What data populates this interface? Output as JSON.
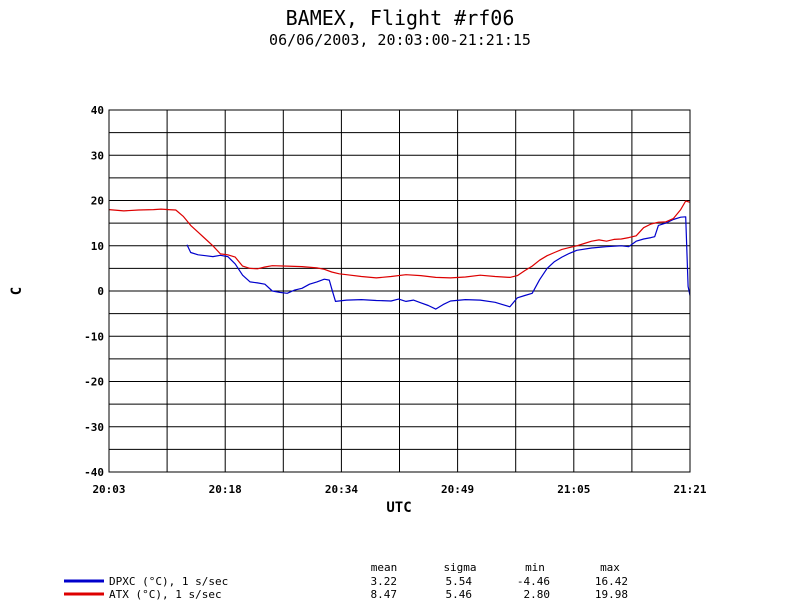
{
  "chart_data": {
    "type": "line",
    "title": "BAMEX, Flight #rf06",
    "subtitle": "06/06/2003, 20:03:00-21:21:15",
    "xlabel": "UTC",
    "ylabel": "C",
    "ylim": [
      -40,
      40
    ],
    "yticks": [
      "40",
      "30",
      "20",
      "10",
      "0",
      "-10",
      "-20",
      "-30",
      "-40"
    ],
    "xticks": [
      "20:03",
      "20:18",
      "20:34",
      "20:49",
      "21:05",
      "21:21"
    ],
    "grid": true,
    "series": [
      {
        "name": "DPXC (°C), 1 s/sec",
        "color": "#0000cc",
        "points": [
          [
            "20:13:30",
            10.2
          ],
          [
            "20:14:00",
            8.5
          ],
          [
            "20:15:00",
            8.0
          ],
          [
            "20:16:00",
            7.8
          ],
          [
            "20:17:00",
            7.6
          ],
          [
            "20:18:00",
            7.9
          ],
          [
            "20:19:00",
            7.6
          ],
          [
            "20:20:00",
            6.0
          ],
          [
            "20:21:00",
            3.5
          ],
          [
            "20:22:00",
            2.0
          ],
          [
            "20:23:00",
            1.8
          ],
          [
            "20:24:00",
            1.5
          ],
          [
            "20:25:00",
            0.0
          ],
          [
            "20:26:00",
            -0.3
          ],
          [
            "20:27:00",
            -0.5
          ],
          [
            "20:28:00",
            0.2
          ],
          [
            "20:29:00",
            0.6
          ],
          [
            "20:30:00",
            1.5
          ],
          [
            "20:31:00",
            2.0
          ],
          [
            "20:32:00",
            2.6
          ],
          [
            "20:32:40",
            2.4
          ],
          [
            "20:33:00",
            0.5
          ],
          [
            "20:33:30",
            -2.3
          ],
          [
            "20:35:00",
            -2.0
          ],
          [
            "20:37:00",
            -1.9
          ],
          [
            "20:39:00",
            -2.1
          ],
          [
            "20:41:00",
            -2.2
          ],
          [
            "20:42:00",
            -1.8
          ],
          [
            "20:43:00",
            -2.3
          ],
          [
            "20:44:00",
            -2.0
          ],
          [
            "20:45:00",
            -2.6
          ],
          [
            "20:46:00",
            -3.2
          ],
          [
            "20:47:00",
            -4.0
          ],
          [
            "20:48:00",
            -3.0
          ],
          [
            "20:49:00",
            -2.2
          ],
          [
            "20:51:00",
            -1.9
          ],
          [
            "20:53:00",
            -2.0
          ],
          [
            "20:55:00",
            -2.5
          ],
          [
            "20:56:00",
            -3.0
          ],
          [
            "20:57:00",
            -3.5
          ],
          [
            "20:58:00",
            -1.5
          ],
          [
            "20:59:00",
            -1.0
          ],
          [
            "21:00:00",
            -0.5
          ],
          [
            "21:01:00",
            2.5
          ],
          [
            "21:02:00",
            5.0
          ],
          [
            "21:03:00",
            6.5
          ],
          [
            "21:04:00",
            7.5
          ],
          [
            "21:05:00",
            8.3
          ],
          [
            "21:06:00",
            9.0
          ],
          [
            "21:08:00",
            9.5
          ],
          [
            "21:10:00",
            9.8
          ],
          [
            "21:12:00",
            10.0
          ],
          [
            "21:13:00",
            9.8
          ],
          [
            "21:14:00",
            11.0
          ],
          [
            "21:15:00",
            11.5
          ],
          [
            "21:16:00",
            11.8
          ],
          [
            "21:16:30",
            12.0
          ],
          [
            "21:17:00",
            14.5
          ],
          [
            "21:18:00",
            15.0
          ],
          [
            "21:19:00",
            15.8
          ],
          [
            "21:20:00",
            16.3
          ],
          [
            "21:20:40",
            16.4
          ],
          [
            "21:21:00",
            1.0
          ],
          [
            "21:21:15",
            -1.0
          ]
        ]
      },
      {
        "name": "ATX (°C), 1 s/sec",
        "color": "#dd0000",
        "points": [
          [
            "20:03:00",
            18.0
          ],
          [
            "20:05:00",
            17.7
          ],
          [
            "20:07:00",
            17.9
          ],
          [
            "20:09:00",
            18.0
          ],
          [
            "20:10:00",
            18.1
          ],
          [
            "20:11:00",
            18.0
          ],
          [
            "20:12:00",
            17.9
          ],
          [
            "20:13:00",
            16.5
          ],
          [
            "20:14:00",
            14.5
          ],
          [
            "20:15:00",
            13.0
          ],
          [
            "20:16:00",
            11.5
          ],
          [
            "20:17:00",
            10.0
          ],
          [
            "20:18:00",
            8.2
          ],
          [
            "20:19:00",
            8.0
          ],
          [
            "20:20:00",
            7.5
          ],
          [
            "20:21:00",
            5.5
          ],
          [
            "20:22:00",
            5.0
          ],
          [
            "20:23:00",
            4.9
          ],
          [
            "20:24:00",
            5.3
          ],
          [
            "20:25:00",
            5.6
          ],
          [
            "20:27:00",
            5.5
          ],
          [
            "20:29:00",
            5.4
          ],
          [
            "20:31:00",
            5.1
          ],
          [
            "20:32:00",
            4.8
          ],
          [
            "20:33:00",
            4.2
          ],
          [
            "20:34:00",
            3.8
          ],
          [
            "20:35:00",
            3.6
          ],
          [
            "20:37:00",
            3.2
          ],
          [
            "20:39:00",
            2.9
          ],
          [
            "20:41:00",
            3.2
          ],
          [
            "20:43:00",
            3.6
          ],
          [
            "20:45:00",
            3.4
          ],
          [
            "20:47:00",
            3.0
          ],
          [
            "20:49:00",
            2.9
          ],
          [
            "20:51:00",
            3.1
          ],
          [
            "20:53:00",
            3.5
          ],
          [
            "20:55:00",
            3.2
          ],
          [
            "20:57:00",
            3.0
          ],
          [
            "20:58:00",
            3.4
          ],
          [
            "20:59:00",
            4.5
          ],
          [
            "21:00:00",
            5.5
          ],
          [
            "21:01:00",
            6.8
          ],
          [
            "21:02:00",
            7.8
          ],
          [
            "21:03:00",
            8.5
          ],
          [
            "21:04:00",
            9.2
          ],
          [
            "21:05:00",
            9.6
          ],
          [
            "21:06:00",
            10.0
          ],
          [
            "21:07:00",
            10.5
          ],
          [
            "21:08:00",
            11.0
          ],
          [
            "21:09:00",
            11.3
          ],
          [
            "21:10:00",
            11.0
          ],
          [
            "21:11:00",
            11.4
          ],
          [
            "21:12:00",
            11.5
          ],
          [
            "21:13:00",
            11.8
          ],
          [
            "21:14:00",
            12.2
          ],
          [
            "21:15:00",
            14.0
          ],
          [
            "21:16:00",
            14.8
          ],
          [
            "21:17:00",
            15.2
          ],
          [
            "21:18:00",
            15.3
          ],
          [
            "21:19:00",
            16.0
          ],
          [
            "21:20:00",
            18.0
          ],
          [
            "21:20:40",
            19.9
          ],
          [
            "21:21:15",
            19.6
          ]
        ]
      }
    ]
  },
  "stats": {
    "headers": [
      "mean",
      "sigma",
      "min",
      "max"
    ],
    "rows": [
      {
        "label": "DPXC (°C), 1 s/sec",
        "color": "#0000cc",
        "values": [
          "3.22",
          "5.54",
          "-4.46",
          "16.42"
        ]
      },
      {
        "label": "ATX (°C), 1 s/sec",
        "color": "#dd0000",
        "values": [
          "8.47",
          "5.46",
          "2.80",
          "19.98"
        ]
      }
    ]
  }
}
